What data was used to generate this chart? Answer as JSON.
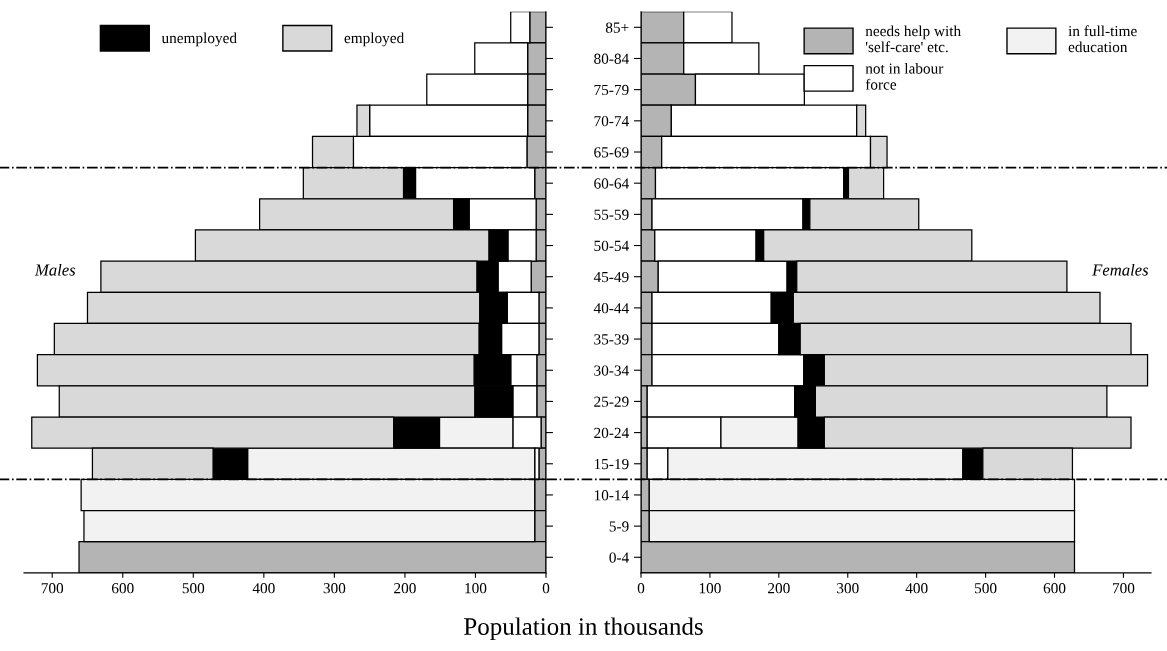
{
  "chart_data": [
    {
      "type": "bar",
      "orientation": "horizontal",
      "stacked": true,
      "xlabel": "Population in thousands",
      "annotations": [
        "Males"
      ],
      "categories": [
        null,
        null,
        null,
        null,
        null,
        null,
        null,
        null,
        null,
        null,
        null,
        null,
        null,
        null,
        null,
        null,
        null,
        null
      ],
      "xlim": [
        740,
        0
      ],
      "xticks": [
        700,
        600,
        500,
        400,
        300,
        200,
        100,
        0
      ],
      "tick_labels": "x",
      "legend": "top left",
      "grid": false,
      "series": [
        {
          "color": "#b4b4b4",
          "values": [
            23,
            26,
            26,
            26,
            27,
            16,
            14,
            14,
            21,
            10,
            10,
            13,
            13,
            7,
            10,
            16,
            16,
            662
          ]
        },
        {
          "color": "#ffffff",
          "values": [
            27,
            75,
            143,
            224,
            246,
            169,
            95,
            40,
            47,
            45,
            53,
            37,
            34,
            40,
            6,
            null,
            null,
            null
          ]
        },
        {
          "color": "#f2f2f2",
          "values": [
            null,
            null,
            null,
            null,
            null,
            null,
            null,
            null,
            null,
            null,
            null,
            null,
            null,
            104,
            407,
            643,
            639,
            null
          ]
        },
        {
          "name": "unemployed",
          "color": "#000000",
          "values": [
            null,
            null,
            null,
            null,
            null,
            17,
            22,
            27,
            30,
            39,
            32,
            52,
            54,
            65,
            49,
            null,
            null,
            null
          ]
        },
        {
          "name": "employed",
          "color": "#d9d9d9",
          "values": [
            null,
            null,
            null,
            18,
            58,
            142,
            275,
            416,
            533,
            556,
            602,
            619,
            589,
            513,
            171,
            null,
            null,
            null
          ]
        }
      ]
    },
    {
      "type": "bar",
      "orientation": "horizontal",
      "stacked": true,
      "annotations": [
        "Females"
      ],
      "categories": [
        "85+",
        "80-84",
        "75-79",
        "70-74",
        "65-69",
        "60-64",
        "55-59",
        "50-54",
        "45-49",
        "40-44",
        "35-39",
        "30-34",
        "25-29",
        "20-24",
        "15-19",
        "10-14",
        "5-9",
        "0-4"
      ],
      "xlim": [
        0,
        740
      ],
      "xticks": [
        0,
        100,
        200,
        300,
        400,
        500,
        600,
        700
      ],
      "legend": "top right",
      "grid": false,
      "series": [
        {
          "name": "needs help with\n'self-care' etc.",
          "color": "#b4b4b4",
          "values": [
            62,
            62,
            79,
            44,
            30,
            21,
            16,
            20,
            25,
            16,
            16,
            16,
            9,
            9,
            9,
            12,
            12,
            629
          ]
        },
        {
          "name": "not in labour\nforce",
          "color": "#ffffff",
          "values": [
            70,
            109,
            158,
            269,
            303,
            273,
            219,
            147,
            187,
            173,
            184,
            220,
            214,
            107,
            30,
            null,
            null,
            null
          ]
        },
        {
          "name": "in full-time\neducation",
          "color": "#f2f2f2",
          "values": [
            null,
            null,
            null,
            null,
            null,
            null,
            null,
            null,
            null,
            null,
            null,
            null,
            null,
            112,
            428,
            617,
            617,
            null
          ]
        },
        {
          "color": "#000000",
          "values": [
            null,
            null,
            null,
            null,
            null,
            7,
            10,
            11,
            14,
            32,
            31,
            30,
            30,
            38,
            29,
            null,
            null,
            null
          ]
        },
        {
          "color": "#d9d9d9",
          "values": [
            null,
            null,
            null,
            13,
            24,
            51,
            158,
            302,
            392,
            445,
            480,
            469,
            423,
            445,
            130,
            null,
            null,
            null
          ]
        }
      ]
    }
  ]
}
